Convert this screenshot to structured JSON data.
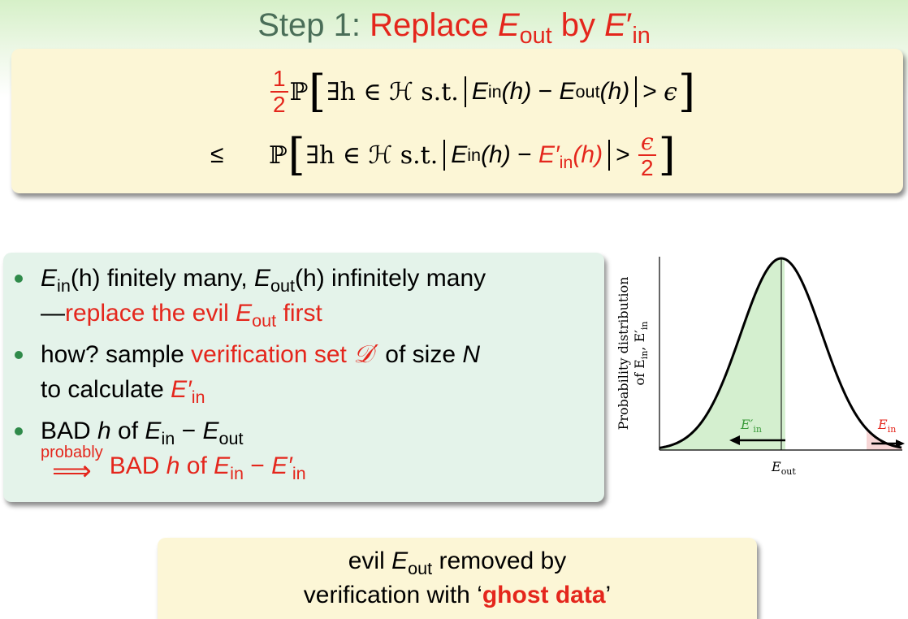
{
  "colors": {
    "accent_red": "#e4261c",
    "title_green": "#4a6e58",
    "yellow_block": "#fcf6d6",
    "green_block": "#e4f3ea",
    "bullet_green": "#2f8a4a"
  },
  "title": {
    "prefix": "Step 1: ",
    "red_part": "Replace ",
    "e_out": "E",
    "e_out_sub": "out",
    "by": " by ",
    "e_in": "E",
    "prime": "′",
    "e_in_sub": "in"
  },
  "inequality": {
    "line1": {
      "coef_num": "1",
      "coef_den": "2",
      "prob": "ℙ",
      "exists": "∃h ∈ ℋ s.t.",
      "lhs": "E",
      "lhs_sub": "in",
      "h": "(h)",
      "minus": "−",
      "rhs": "E",
      "rhs_sub": "out",
      "gt": ">",
      "eps": "ϵ"
    },
    "line2": {
      "leq": "≤",
      "prob": "ℙ",
      "exists": "∃h ∈ ℋ s.t.",
      "lhs": "E",
      "lhs_sub": "in",
      "h": "(h)",
      "minus": "−",
      "rhs": "E′",
      "rhs_sub": "in",
      "gt": ">",
      "eps_num": "ϵ",
      "eps_den": "2"
    }
  },
  "bullets": {
    "b1": {
      "ein": "E",
      "ein_sub": "in",
      "t1": "(h) finitely many, ",
      "eout": "E",
      "eout_sub": "out",
      "t2": "(h) infinitely many",
      "dash": "—",
      "red1": "replace the evil ",
      "red_e": "E",
      "red_e_sub": "out",
      "red2": " first"
    },
    "b2": {
      "t1": "how? sample ",
      "red1": "verification set ",
      "red_d": "𝒟′",
      "t2": " of size ",
      "n": "N",
      "t3": "to calculate ",
      "red_e": "E′",
      "red_e_sub": "in"
    },
    "b3": {
      "t1": "BAD ",
      "h": "h",
      "t2": " of ",
      "e1": "E",
      "e1_sub": "in",
      "minus": " − ",
      "e2": "E",
      "e2_sub": "out",
      "arrow_label": "probably",
      "arrow": "⟹",
      "red1": "BAD ",
      "red_h": "h",
      "red2": " of ",
      "red_e1": "E",
      "red_e1_sub": "in",
      "red_minus": " − ",
      "red_e2": "E′",
      "red_e2_sub": "in"
    }
  },
  "figure": {
    "ylabel_line1": "Probability distribution",
    "ylabel_line2": "of E",
    "ylabel_sub1": "in",
    "ylabel_mid": ", E′",
    "ylabel_sub2": "in",
    "xlabel": "E",
    "xlabel_sub": "out",
    "left_label": "E′",
    "left_label_sub": "in",
    "right_label": "E",
    "right_label_sub": "in",
    "left_shade": "#d4efcf",
    "right_shade": "#f7d6d6",
    "label_green": "#3a9a3a",
    "label_red": "#e4261c"
  },
  "conclusion": {
    "t1": "evil ",
    "e": "E",
    "e_sub": "out",
    "t2": " removed by",
    "t3": "verification with ‘",
    "ghost": "ghost data",
    "t4": "’"
  }
}
